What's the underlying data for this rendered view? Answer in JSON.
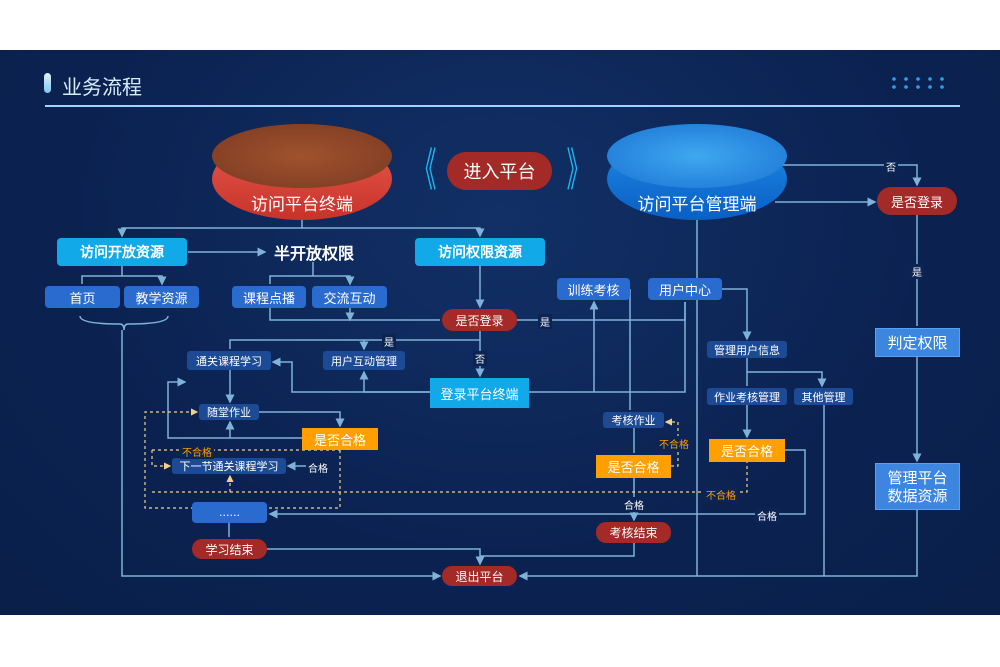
{
  "header": {
    "title": "业务流程"
  },
  "colors": {
    "background": "#0b2251",
    "accent_cyan": "#12a9e8",
    "decision_red": "#a32a26",
    "decision_orange": "#ff9f00",
    "node_blue": "#2a6bd0"
  },
  "top": {
    "left_platform": "访问平台终端",
    "enter": "进入平台",
    "right_platform": "访问平台管理端",
    "login_check_admin": "是否登录"
  },
  "left": {
    "open_resource": "访问开放资源",
    "semi_open": "半开放权限",
    "auth_resource": "访问权限资源",
    "home": "首页",
    "teaching_resource": "教学资源",
    "course_vod": "课程点播",
    "interaction": "交流互动",
    "login_check": "是否登录",
    "pass_course": "通关课程学习",
    "user_interaction_mgmt": "用户互动管理",
    "login_terminal": "登录平台终端",
    "class_homework": "随堂作业",
    "qualified_check": "是否合格",
    "next_course": "下一节通关课程学习",
    "ellipsis": "......",
    "study_end": "学习结束",
    "exit": "退出平台"
  },
  "middle": {
    "training_exam": "训练考核",
    "user_center": "用户中心",
    "exam_homework": "考核作业",
    "qualified_check": "是否合格",
    "exam_end": "考核结束",
    "manage_user_info": "管理用户信息",
    "homework_exam_mgmt": "作业考核管理",
    "other_mgmt": "其他管理",
    "qualified_check_2": "是否合格"
  },
  "right": {
    "determine_permission": "判定权限",
    "data_resource": "管理平台数据资源"
  },
  "edge_labels": {
    "yes": "是",
    "no": "否",
    "pass": "合格",
    "fail": "不合格"
  }
}
